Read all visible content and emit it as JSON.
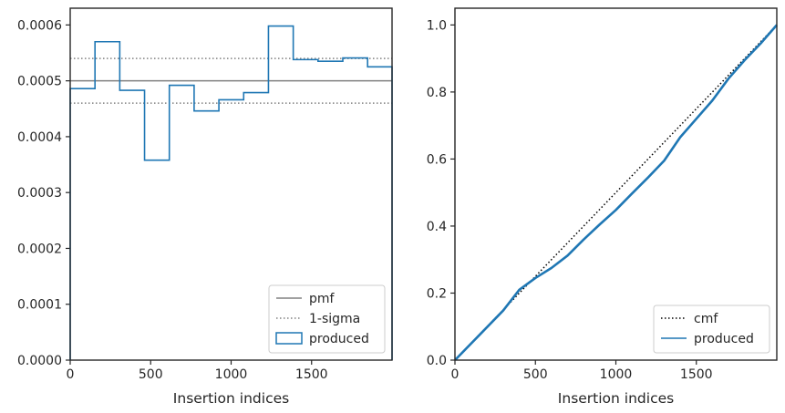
{
  "chart_data": [
    {
      "type": "step-histogram",
      "xlabel": "Insertion indices",
      "ylabel": "",
      "xlim": [
        0,
        2000
      ],
      "ylim": [
        0,
        0.00063
      ],
      "xticks": [
        0,
        500,
        1000,
        1500
      ],
      "xtick_labels": [
        "0",
        "500",
        "1000",
        "1500"
      ],
      "yticks": [
        0,
        0.0001,
        0.0002,
        0.0003,
        0.0004,
        0.0005,
        0.0006
      ],
      "ytick_labels": [
        "0.0000",
        "0.0001",
        "0.0002",
        "0.0003",
        "0.0004",
        "0.0005",
        "0.0006"
      ],
      "legend_position": "lower-right",
      "pmf": 0.0005,
      "sigma_band": [
        0.00046,
        0.00054
      ],
      "bin_edges": [
        0,
        154,
        308,
        462,
        616,
        770,
        924,
        1078,
        1232,
        1386,
        1540,
        1694,
        1848,
        2000
      ],
      "bin_values": [
        0.000486,
        0.00057,
        0.000483,
        0.000358,
        0.000492,
        0.000446,
        0.000466,
        0.000479,
        0.000598,
        0.000538,
        0.000535,
        0.000541,
        0.000525
      ],
      "series": [
        {
          "name": "pmf",
          "color": "#808080",
          "style": "solid"
        },
        {
          "name": "1-sigma",
          "color": "#808080",
          "style": "dotted"
        },
        {
          "name": "produced",
          "color": "#1f77b4",
          "style": "step"
        }
      ],
      "grid": false
    },
    {
      "type": "line",
      "xlabel": "Insertion indices",
      "ylabel": "",
      "xlim": [
        0,
        2000
      ],
      "ylim": [
        0,
        1.05
      ],
      "xticks": [
        0,
        500,
        1000,
        1500
      ],
      "xtick_labels": [
        "0",
        "500",
        "1000",
        "1500"
      ],
      "yticks": [
        0,
        0.2,
        0.4,
        0.6,
        0.8,
        1.0
      ],
      "ytick_labels": [
        "0.0",
        "0.2",
        "0.4",
        "0.6",
        "0.8",
        "1.0"
      ],
      "legend_position": "lower-right",
      "series": [
        {
          "name": "cmf",
          "color": "#000000",
          "style": "dotted",
          "x": [
            0,
            2000
          ],
          "y": [
            0,
            1.0
          ]
        },
        {
          "name": "produced",
          "color": "#1f77b4",
          "style": "solid",
          "x": [
            0,
            150,
            300,
            400,
            500,
            600,
            700,
            800,
            900,
            1000,
            1100,
            1200,
            1300,
            1400,
            1500,
            1600,
            1700,
            1800,
            1900,
            2000
          ],
          "y": [
            0,
            0.074,
            0.148,
            0.21,
            0.245,
            0.275,
            0.312,
            0.36,
            0.405,
            0.448,
            0.497,
            0.545,
            0.595,
            0.665,
            0.72,
            0.775,
            0.84,
            0.895,
            0.945,
            1.0
          ]
        }
      ],
      "grid": false
    }
  ]
}
